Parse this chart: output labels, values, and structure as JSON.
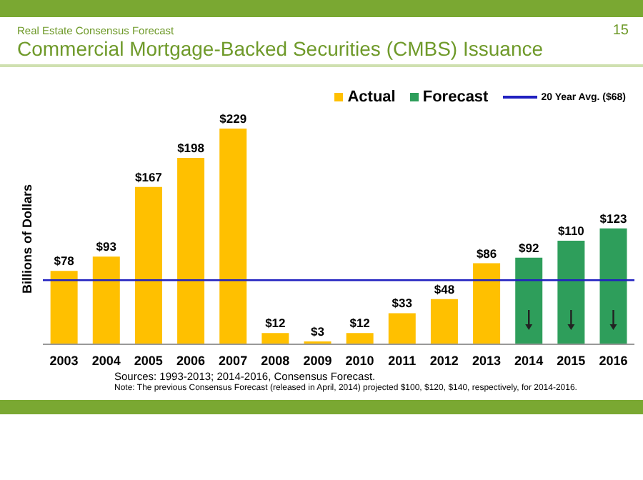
{
  "chart_data": {
    "type": "bar",
    "title": "Commercial Mortgage-Backed Securities (CMBS) Issuance",
    "subtitle": "Real Estate Consensus Forecast",
    "ylabel": "Billions of Dollars",
    "categories": [
      "2003",
      "2004",
      "2005",
      "2006",
      "2007",
      "2008",
      "2009",
      "2010",
      "2011",
      "2012",
      "2013",
      "2014",
      "2015",
      "2016"
    ],
    "stacked": true,
    "series": [
      {
        "name": "Actual",
        "color": "#ffc000",
        "values": [
          78,
          93,
          167,
          198,
          229,
          12,
          3,
          12,
          33,
          48,
          86,
          null,
          null,
          null
        ],
        "value_labels": [
          "$78",
          "$93",
          "$167",
          "$198",
          "$229",
          "$12",
          "$3",
          "$12",
          "$33",
          "$48",
          "$86",
          null,
          null,
          null
        ]
      },
      {
        "name": "Forecast",
        "color": "#2e9e5b",
        "values": [
          null,
          null,
          null,
          null,
          null,
          null,
          null,
          null,
          null,
          null,
          null,
          92,
          110,
          123
        ],
        "value_labels": [
          null,
          null,
          null,
          null,
          null,
          null,
          null,
          null,
          null,
          null,
          null,
          "$92",
          "$110",
          "$123"
        ]
      }
    ],
    "ref_lines": [
      {
        "axis": "y",
        "value": 68,
        "label": "20 Year Avg. ($68)",
        "color": "#2020c0"
      }
    ],
    "legend": "top right",
    "grid": false,
    "tick_labels": "x",
    "annotations": [
      "15",
      "Sources: 1993-2013; 2014-2016, Consensus Forecast.",
      "Note: The previous Consensus Forecast (released in April, 2014) projected $100, $120, $140, respectively, for 2014-2016."
    ]
  }
}
